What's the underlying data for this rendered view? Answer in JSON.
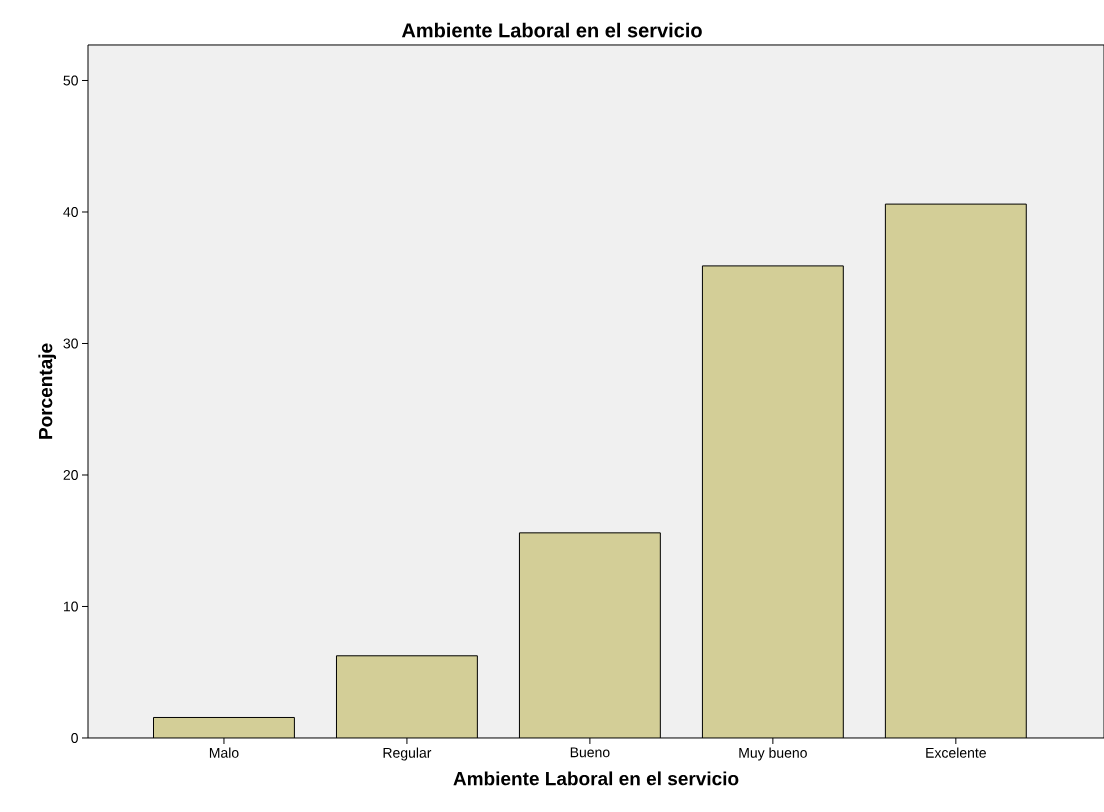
{
  "chart_data": {
    "type": "bar",
    "title": "Ambiente Laboral en el servicio",
    "xlabel": "Ambiente Laboral en el servicio",
    "ylabel": "Porcentaje",
    "categories": [
      "Malo",
      "Regular",
      "Bueno",
      "Muy bueno",
      "Excelente"
    ],
    "values": [
      1.56,
      6.25,
      15.6,
      35.9,
      40.6
    ],
    "color": "#d3ce97",
    "ylim": [
      0,
      52.7
    ],
    "yticks": [
      0,
      10,
      20,
      30,
      40,
      50
    ],
    "grid": false
  }
}
